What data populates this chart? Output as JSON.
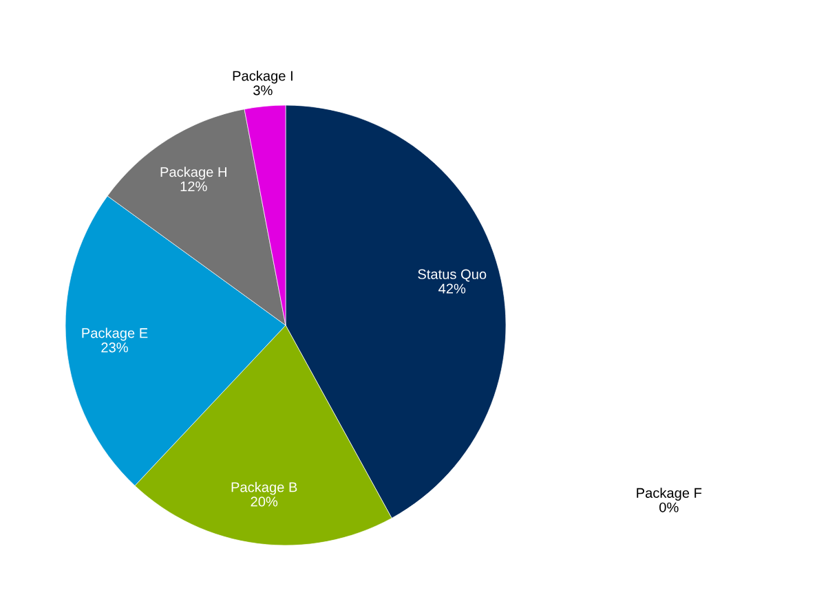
{
  "chart_data": {
    "type": "pie",
    "categories": [
      "Status Quo",
      "Package F",
      "Package B",
      "Package E",
      "Package H",
      "Package I"
    ],
    "values": [
      42,
      0,
      20,
      23,
      12,
      3
    ],
    "colors": [
      "#002b5c",
      "#ffffff",
      "#88b300",
      "#009ad6",
      "#737373",
      "#e100e1"
    ],
    "value_labels": [
      "42%",
      "0%",
      "20%",
      "23%",
      "12%",
      "3%"
    ],
    "legend": false
  }
}
